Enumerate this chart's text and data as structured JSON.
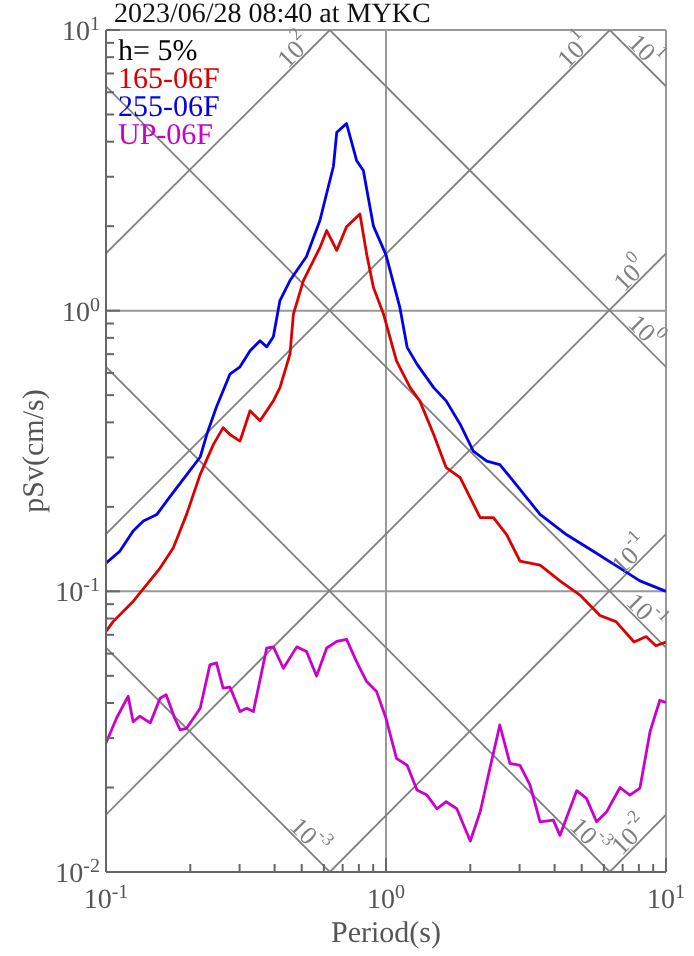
{
  "chart_data": {
    "type": "line",
    "title": "2023/06/28 08:40 at MYKC",
    "xlabel": "Period(s)",
    "ylabel": "pSv(cm/s)",
    "legend_title": "h= 5%",
    "legend": "top left",
    "grid": true,
    "log": "xy",
    "xlim": [
      0.1,
      10
    ],
    "ylim": [
      0.01,
      10
    ],
    "xticks": [
      {
        "value": 0.1,
        "label": "10$^{-1}$"
      },
      {
        "value": 0.2,
        "label": null
      },
      {
        "value": 0.3,
        "label": null
      },
      {
        "value": 0.4,
        "label": null
      },
      {
        "value": 0.5,
        "label": null
      },
      {
        "value": 0.6,
        "label": null
      },
      {
        "value": 0.7,
        "label": null
      },
      {
        "value": 0.8,
        "label": null
      },
      {
        "value": 0.9,
        "label": null
      },
      {
        "value": 1,
        "label": "10$^{0}$"
      },
      {
        "value": 2,
        "label": null
      },
      {
        "value": 3,
        "label": null
      },
      {
        "value": 4,
        "label": null
      },
      {
        "value": 5,
        "label": null
      },
      {
        "value": 6,
        "label": null
      },
      {
        "value": 7,
        "label": null
      },
      {
        "value": 8,
        "label": null
      },
      {
        "value": 9,
        "label": null
      },
      {
        "value": 10,
        "label": "10$^{1}$"
      }
    ],
    "yticks": [
      {
        "value": 0.01,
        "label": "10$^{-2}$"
      },
      {
        "value": 0.02,
        "label": null
      },
      {
        "value": 0.03,
        "label": null
      },
      {
        "value": 0.04,
        "label": null
      },
      {
        "value": 0.05,
        "label": null
      },
      {
        "value": 0.06,
        "label": null
      },
      {
        "value": 0.07,
        "label": null
      },
      {
        "value": 0.08,
        "label": null
      },
      {
        "value": 0.09,
        "label": null
      },
      {
        "value": 0.1,
        "label": "10$^{-1}$"
      },
      {
        "value": 0.2,
        "label": null
      },
      {
        "value": 0.3,
        "label": null
      },
      {
        "value": 0.4,
        "label": null
      },
      {
        "value": 0.5,
        "label": null
      },
      {
        "value": 0.6,
        "label": null
      },
      {
        "value": 0.7,
        "label": null
      },
      {
        "value": 0.8,
        "label": null
      },
      {
        "value": 0.9,
        "label": null
      },
      {
        "value": 1,
        "label": "10$^{0}$"
      },
      {
        "value": 2,
        "label": null
      },
      {
        "value": 3,
        "label": null
      },
      {
        "value": 4,
        "label": null
      },
      {
        "value": 5,
        "label": null
      },
      {
        "value": 6,
        "label": null
      },
      {
        "value": 7,
        "label": null
      },
      {
        "value": 8,
        "label": null
      },
      {
        "value": 9,
        "label": null
      },
      {
        "value": 10,
        "label": "10$^{1}$"
      }
    ],
    "series": [
      {
        "type": "line",
        "name": "10$^{2}$",
        "color": "#808080",
        "x": [
          0.1,
          0.63
        ],
        "values": [
          1.6,
          10
        ]
      },
      {
        "type": "line",
        "name": "10$^{1}$",
        "color": "#808080",
        "x": [
          0.1,
          6.3
        ],
        "values": [
          0.16,
          10
        ]
      },
      {
        "type": "line",
        "name": "10$^{0}$",
        "color": "#808080",
        "x": [
          0.1,
          10
        ],
        "values": [
          0.016,
          1.6
        ]
      },
      {
        "type": "line",
        "name": "10$^{-1}$",
        "color": "#808080",
        "x": [
          0.63,
          10
        ],
        "values": [
          0.01,
          0.16
        ]
      },
      {
        "type": "line",
        "name": "10$^{-2}$",
        "color": "#808080",
        "x": [
          6.3,
          10
        ],
        "values": [
          0.01,
          0.016
        ]
      },
      {
        "type": "line",
        "name": "10$^{1}$",
        "color": "#808080",
        "x": [
          6.3,
          10
        ],
        "values": [
          10,
          6.3
        ]
      },
      {
        "type": "line",
        "name": "10$^{0}$",
        "color": "#808080",
        "x": [
          0.63,
          10
        ],
        "values": [
          10,
          0.63
        ]
      },
      {
        "type": "line",
        "name": "10$^{-1}$",
        "color": "#808080",
        "x": [
          0.1,
          10
        ],
        "values": [
          6.3,
          0.063
        ]
      },
      {
        "type": "line",
        "name": "10$^{-3}$",
        "color": "#808080",
        "x": [
          0.1,
          6.3
        ],
        "values": [
          0.63,
          0.01
        ]
      },
      {
        "type": "line",
        "name": "10$^{-3}$",
        "color": "#808080",
        "x": [
          0.1,
          0.63
        ],
        "values": [
          0.063,
          0.01
        ]
      },
      {
        "name": "165-06F",
        "color": "#dd0000",
        "x": [
          0.1,
          0.106,
          0.125,
          0.156,
          0.174,
          0.194,
          0.217,
          0.242,
          0.262,
          0.277,
          0.301,
          0.327,
          0.355,
          0.396,
          0.418,
          0.454,
          0.467,
          0.507,
          0.551,
          0.581,
          0.614,
          0.667,
          0.723,
          0.807,
          0.853,
          0.902,
          0.98,
          1.09,
          1.22,
          1.32,
          1.48,
          1.64,
          1.84,
          2.17,
          2.42,
          2.7,
          3.01,
          3.55,
          4.18,
          4.93,
          5.81,
          6.63,
          7.69,
          8.49,
          9.2,
          10
        ],
        "values": [
          0.072,
          0.078,
          0.092,
          0.121,
          0.143,
          0.188,
          0.261,
          0.334,
          0.383,
          0.362,
          0.343,
          0.44,
          0.405,
          0.477,
          0.532,
          0.7,
          0.972,
          1.28,
          1.51,
          1.68,
          1.93,
          1.64,
          1.99,
          2.21,
          1.59,
          1.21,
          0.972,
          0.663,
          0.532,
          0.477,
          0.362,
          0.276,
          0.254,
          0.183,
          0.183,
          0.159,
          0.128,
          0.124,
          0.109,
          0.097,
          0.082,
          0.078,
          0.066,
          0.069,
          0.064,
          0.066
        ]
      },
      {
        "name": "255-06F",
        "color": "#0000ee",
        "x": [
          0.1,
          0.112,
          0.125,
          0.136,
          0.152,
          0.169,
          0.194,
          0.217,
          0.229,
          0.248,
          0.277,
          0.301,
          0.327,
          0.355,
          0.375,
          0.396,
          0.418,
          0.454,
          0.52,
          0.581,
          0.649,
          0.667,
          0.723,
          0.785,
          0.83,
          0.902,
          1.0,
          1.12,
          1.19,
          1.29,
          1.48,
          1.64,
          1.84,
          2.05,
          2.29,
          2.55,
          2.85,
          3.55,
          4.42,
          5.5,
          6.85,
          8.07,
          10
        ],
        "values": [
          0.126,
          0.139,
          0.164,
          0.178,
          0.188,
          0.217,
          0.26,
          0.301,
          0.362,
          0.454,
          0.594,
          0.631,
          0.72,
          0.781,
          0.743,
          0.808,
          1.086,
          1.28,
          1.56,
          2.1,
          3.27,
          4.32,
          4.64,
          3.43,
          3.16,
          2.0,
          1.58,
          1.03,
          0.74,
          0.645,
          0.532,
          0.477,
          0.394,
          0.316,
          0.291,
          0.283,
          0.247,
          0.188,
          0.159,
          0.139,
          0.121,
          0.109,
          0.1
        ]
      },
      {
        "name": "UP-06F",
        "color": "#cc00cc",
        "x": [
          0.1,
          0.109,
          0.12,
          0.125,
          0.132,
          0.144,
          0.156,
          0.164,
          0.176,
          0.184,
          0.194,
          0.217,
          0.235,
          0.248,
          0.262,
          0.277,
          0.301,
          0.318,
          0.336,
          0.375,
          0.396,
          0.43,
          0.48,
          0.52,
          0.565,
          0.614,
          0.667,
          0.723,
          0.785,
          0.853,
          0.925,
          1.0,
          1.09,
          1.19,
          1.29,
          1.4,
          1.52,
          1.64,
          1.79,
          2.0,
          2.17,
          2.35,
          2.55,
          2.77,
          3.01,
          3.27,
          3.55,
          3.96,
          4.18,
          4.8,
          5.2,
          5.65,
          6.14,
          6.85,
          7.43,
          8.07,
          8.77,
          9.5,
          10
        ],
        "values": [
          0.0288,
          0.0353,
          0.0423,
          0.0343,
          0.0359,
          0.034,
          0.0416,
          0.0428,
          0.0353,
          0.0321,
          0.0325,
          0.0383,
          0.0547,
          0.0556,
          0.0452,
          0.0456,
          0.0373,
          0.0383,
          0.0373,
          0.0628,
          0.0634,
          0.0532,
          0.0634,
          0.061,
          0.0499,
          0.0628,
          0.0663,
          0.0674,
          0.0562,
          0.0477,
          0.044,
          0.0353,
          0.0254,
          0.024,
          0.0196,
          0.0188,
          0.0168,
          0.0178,
          0.0168,
          0.0129,
          0.0164,
          0.0234,
          0.0334,
          0.0244,
          0.024,
          0.0204,
          0.0151,
          0.0153,
          0.0135,
          0.0195,
          0.0183,
          0.0151,
          0.0164,
          0.02,
          0.0188,
          0.0199,
          0.0316,
          0.0409,
          0.0402
        ]
      }
    ]
  }
}
